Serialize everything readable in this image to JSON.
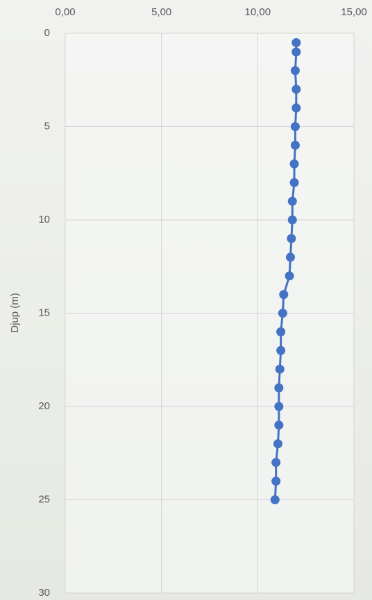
{
  "chart_data": {
    "type": "line",
    "y_label": "Djup (m)",
    "x": [
      12.0,
      12.0,
      11.95,
      12.0,
      12.0,
      11.95,
      11.95,
      11.9,
      11.9,
      11.8,
      11.8,
      11.75,
      11.7,
      11.65,
      11.35,
      11.3,
      11.2,
      11.2,
      11.15,
      11.1,
      11.1,
      11.1,
      11.05,
      10.95,
      10.95,
      10.9
    ],
    "y": [
      0.5,
      1,
      2,
      3,
      4,
      5,
      6,
      7,
      8,
      9,
      10,
      11,
      12,
      13,
      14,
      15,
      16,
      17,
      18,
      19,
      20,
      21,
      22,
      23,
      24,
      25
    ],
    "color": "#4472c4",
    "xlim": [
      0,
      15
    ],
    "xticks": [
      {
        "value": 0,
        "label": "0,00"
      },
      {
        "value": 5,
        "label": "5,00"
      },
      {
        "value": 10,
        "label": "10,00"
      },
      {
        "value": 15,
        "label": "15,00"
      }
    ],
    "ylim": [
      0,
      30
    ],
    "yticks": [
      0,
      5,
      10,
      15,
      20,
      25,
      30
    ],
    "y_inverted": true,
    "grid": true
  }
}
